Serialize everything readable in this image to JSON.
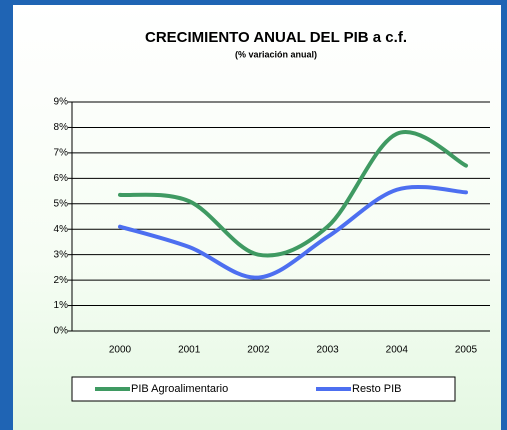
{
  "chart_data": {
    "type": "line",
    "title": "CRECIMIENTO ANUAL DEL PIB a c.f.",
    "subtitle": "(% variación anual)",
    "categories": [
      "2000",
      "2001",
      "2002",
      "2003",
      "2004",
      "2005"
    ],
    "series": [
      {
        "name": "PIB Agroalimentario",
        "color": "#3f9a62",
        "values": [
          5.35,
          5.1,
          3.0,
          4.1,
          7.75,
          6.5
        ]
      },
      {
        "name": "Resto PIB",
        "color": "#4d6ff0",
        "values": [
          4.1,
          3.3,
          2.1,
          3.7,
          5.55,
          5.45
        ]
      }
    ],
    "ylim": [
      0,
      9
    ],
    "yticks": [
      {
        "value": 0,
        "label": "0%"
      },
      {
        "value": 1,
        "label": "1%"
      },
      {
        "value": 2,
        "label": "2%"
      },
      {
        "value": 3,
        "label": "3%"
      },
      {
        "value": 4,
        "label": "4%"
      },
      {
        "value": 5,
        "label": "5%"
      },
      {
        "value": 6,
        "label": "6%"
      },
      {
        "value": 7,
        "label": "7%"
      },
      {
        "value": 8,
        "label": "8%"
      },
      {
        "value": 9,
        "label": "9%"
      }
    ],
    "grid": true,
    "legend": "bottom"
  }
}
